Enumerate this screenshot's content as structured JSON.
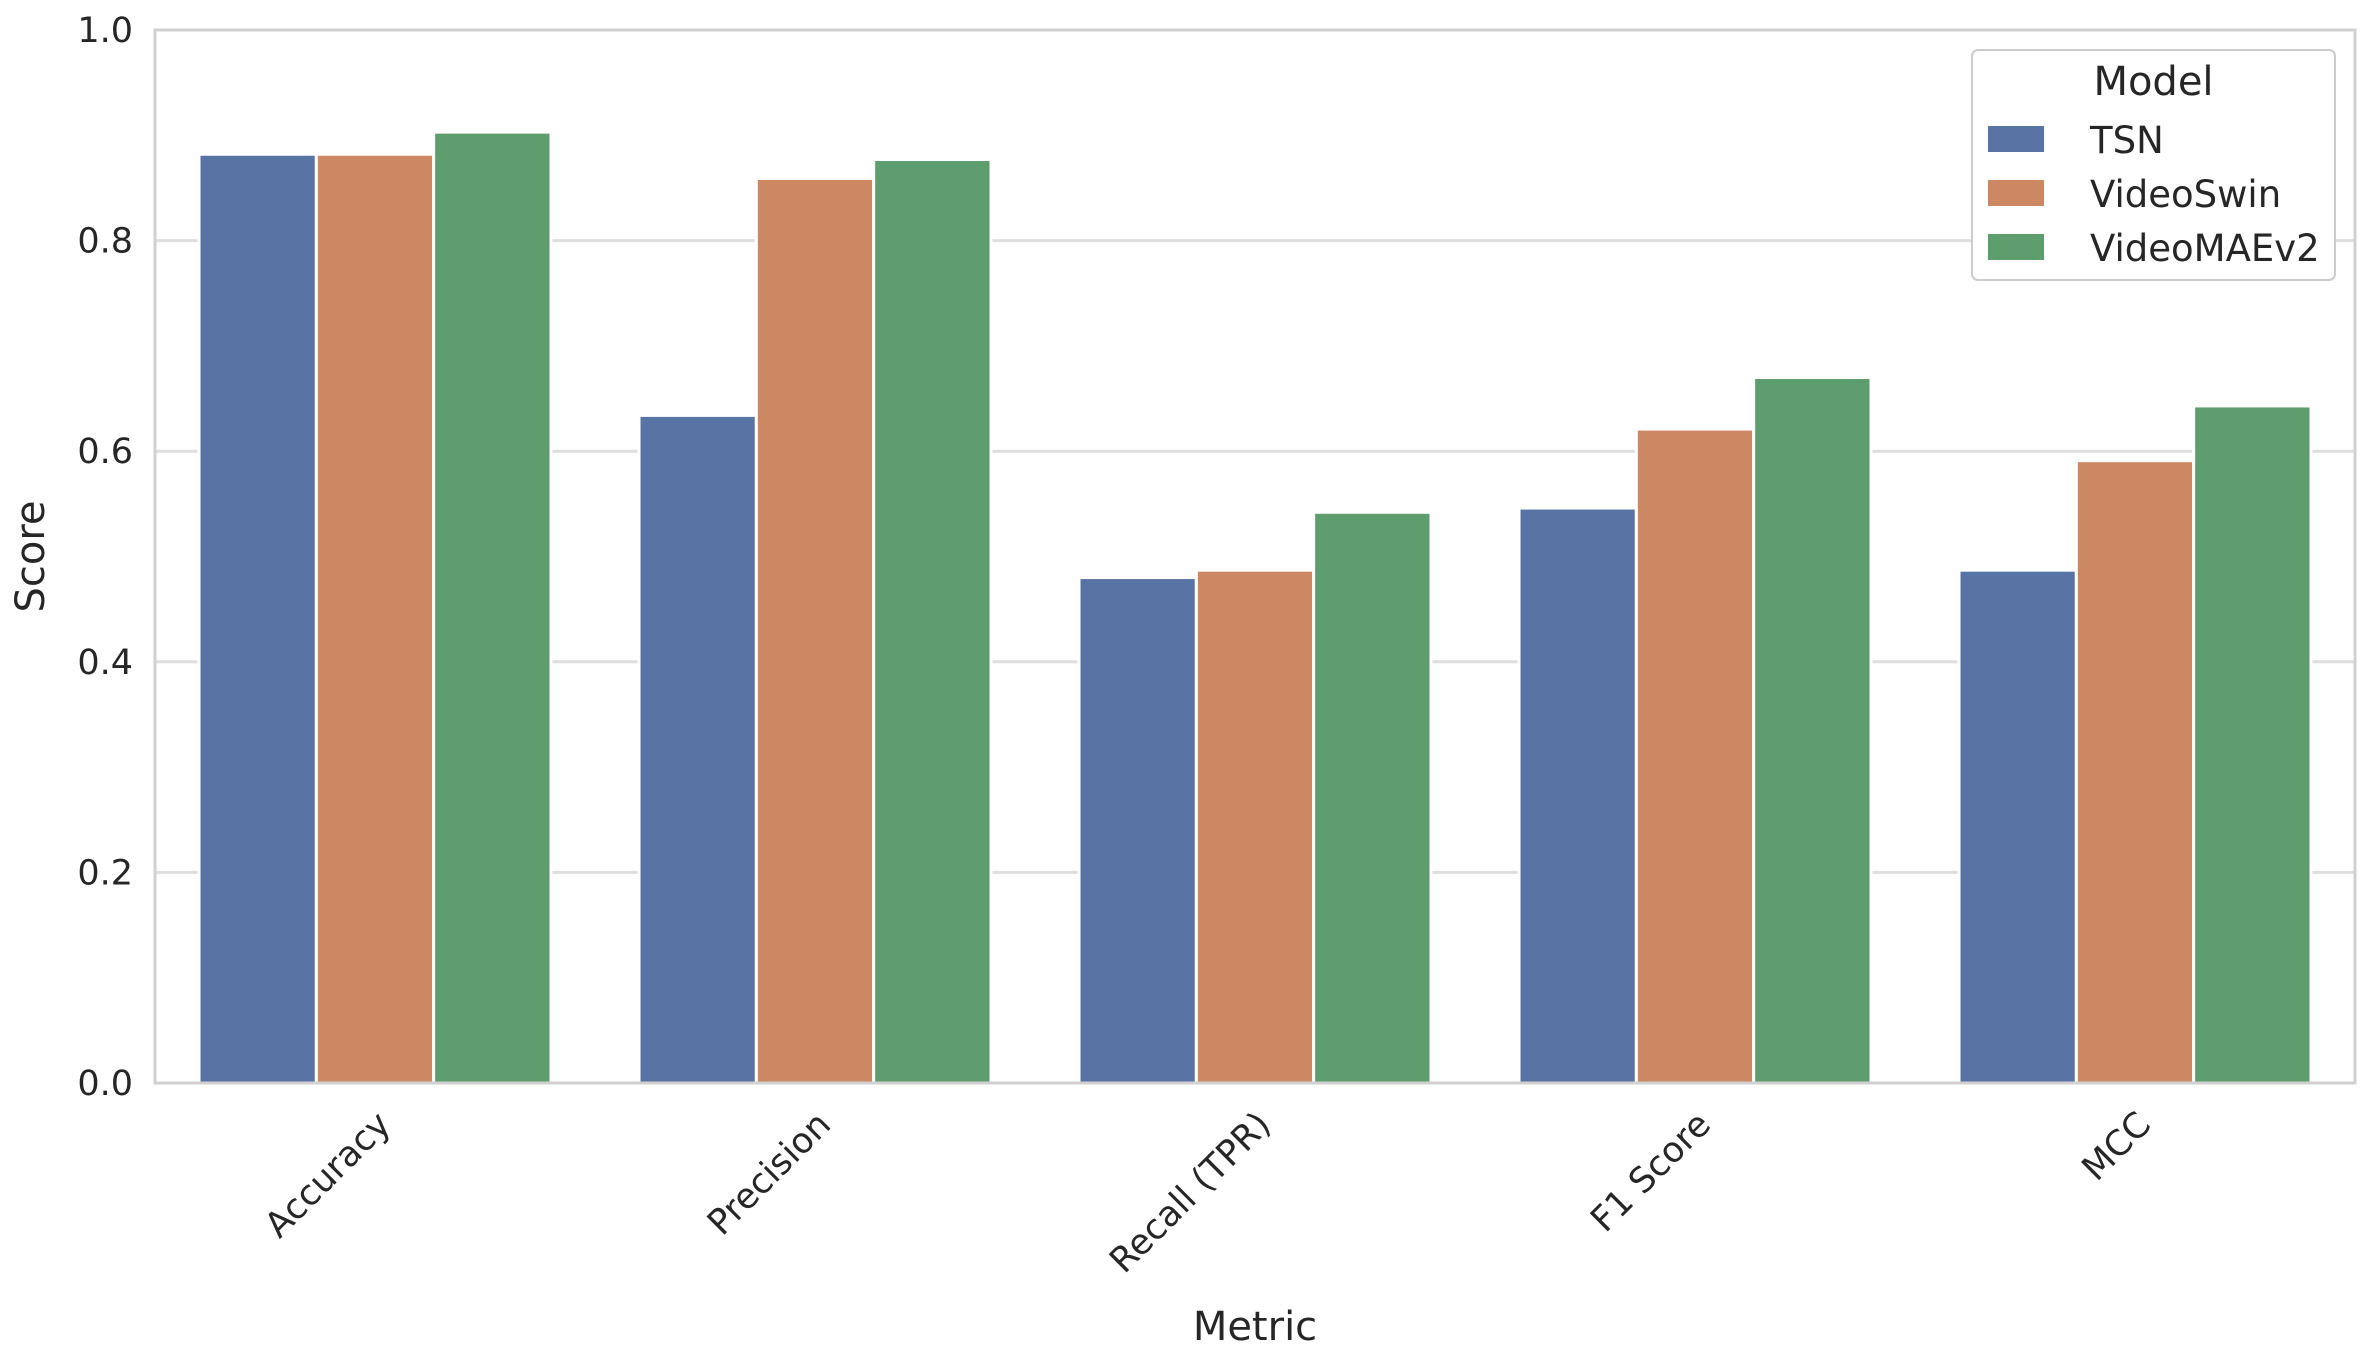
{
  "chart_data": {
    "type": "bar",
    "xlabel": "Metric",
    "ylabel": "Score",
    "ylim": [
      0,
      1.0
    ],
    "yticks": [
      "0.0",
      "0.2",
      "0.4",
      "0.6",
      "0.8",
      "1.0"
    ],
    "ytick_values": [
      0,
      0.2,
      0.4,
      0.6,
      0.8,
      1.0
    ],
    "categories": [
      "Accuracy",
      "Precision",
      "Recall (TPR)",
      "F1 Score",
      "MCC"
    ],
    "series": [
      {
        "name": "TSN",
        "color": "#5874a5",
        "values": [
          0.882,
          0.634,
          0.48,
          0.546,
          0.487
        ]
      },
      {
        "name": "VideoSwin",
        "color": "#cc8763",
        "values": [
          0.882,
          0.859,
          0.487,
          0.621,
          0.591
        ]
      },
      {
        "name": "VideoMAEv2",
        "color": "#5e9e6e",
        "values": [
          0.903,
          0.877,
          0.542,
          0.67,
          0.643
        ]
      }
    ],
    "legend": {
      "title": "Model",
      "placement": "top-right"
    },
    "grid": true
  }
}
